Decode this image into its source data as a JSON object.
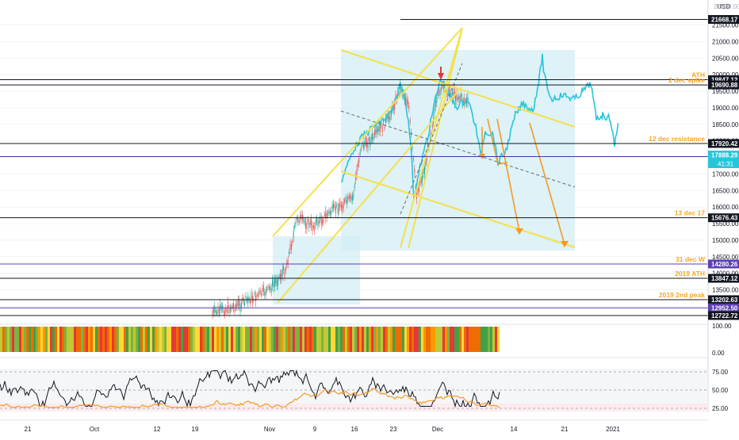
{
  "currency": "USD",
  "price_scale": {
    "ticks": [
      "21500.00",
      "21000.00",
      "20500.00",
      "20000.00",
      "19500.00",
      "19000.00",
      "18500.00",
      "18000.00",
      "17500.00",
      "17000.00",
      "16500.00",
      "16000.00",
      "15500.00",
      "15000.00",
      "14500.00",
      "14000.00",
      "13500.00",
      "13000.00"
    ],
    "top_partial": "22000.00"
  },
  "level_lines": [
    {
      "price": 21668.17,
      "label": "21668.17",
      "color": "#131722",
      "note": ""
    },
    {
      "price": 19847.12,
      "label": "19847.12",
      "color": "#131722",
      "note": "ATH"
    },
    {
      "price": 19690.88,
      "label": "19690.88",
      "color": "#131722",
      "note": "2 dec spike"
    },
    {
      "price": 17920.42,
      "label": "17920.42",
      "color": "#131722",
      "note": "12 dec resistance"
    },
    {
      "price": 17523.85,
      "label": "17523.85",
      "color": "#4a3aa0",
      "note": ""
    },
    {
      "price": 15676.43,
      "label": "15676.43",
      "color": "#131722",
      "note": "13 dec 17"
    },
    {
      "price": 14280.26,
      "label": "14280.26",
      "color": "#5b3fb0",
      "note": "31 dec W"
    },
    {
      "price": 13847.12,
      "label": "13847.12",
      "color": "#131722",
      "note": "2019 ATH"
    },
    {
      "price": 13202.63,
      "label": "13202.63",
      "color": "#131722",
      "note": "2019 2nd peak"
    },
    {
      "price": 12952.5,
      "label": "12952.50",
      "color": "#5b3fb0",
      "note": ""
    },
    {
      "price": 12722.72,
      "label": "12722.72",
      "color": "#131722",
      "note": ""
    }
  ],
  "last_price": {
    "label": "17888.29",
    "countdown": "41:31",
    "color": "#26c6da"
  },
  "heat_scale": {
    "top": "100.00",
    "bottom": "0.00"
  },
  "osc_scale": [
    "75.00",
    "50.00",
    "25.00"
  ],
  "time_axis": [
    "21",
    "Oct",
    "12",
    "19",
    "Nov",
    "9",
    "16",
    "23",
    "Dec",
    "14",
    "21",
    "2021"
  ],
  "colors": {
    "annotation": "#f5a623",
    "channel": "#f4e04d",
    "price_line": "#26c6da",
    "zone": "#d3eef5",
    "candle_up": "#26a69a",
    "candle_down": "#ef5350",
    "osc_main": "#131722",
    "osc_signal": "#f59a23"
  }
}
